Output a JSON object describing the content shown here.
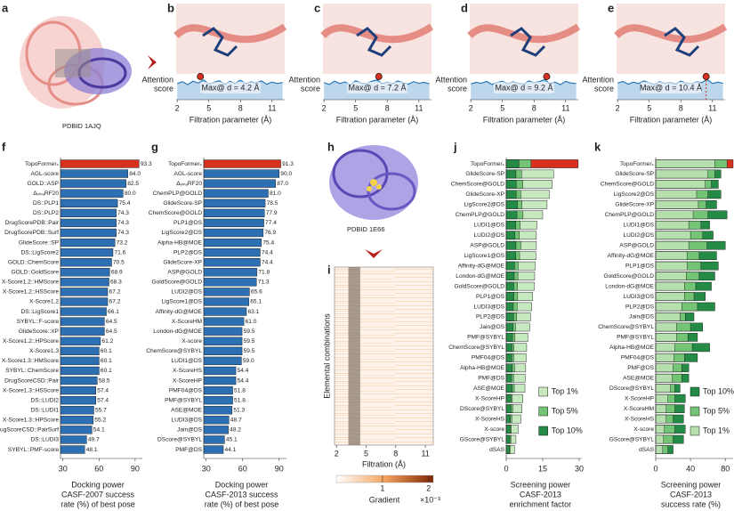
{
  "chart_data": [
    {
      "type": "image",
      "panel": "a",
      "caption": "PDBID 1AJQ"
    },
    {
      "type": "line",
      "panel": "b",
      "ylabel": [
        "Attention",
        "score"
      ],
      "xlabel": "Filtration parameter (Å)",
      "annotation": "Max@ d = 4.2 Å",
      "highlight_x": 4.2,
      "x": [
        2,
        2.5,
        3,
        3.5,
        4,
        4.5,
        5,
        5.5,
        6,
        6.5,
        7,
        7.5,
        8,
        8.5,
        9,
        9.5,
        10,
        10.5,
        11,
        11.5,
        12
      ],
      "values": [
        0.7,
        0.78,
        0.65,
        0.8,
        0.72,
        0.85,
        0.68,
        0.75,
        0.82,
        0.66,
        0.79,
        0.71,
        0.84,
        0.69,
        0.77,
        0.73,
        0.81,
        0.67,
        0.76,
        0.7,
        0.74
      ],
      "color": "#2a78b8",
      "fill": "#bcd6ec",
      "highlight_color": "#d7301f",
      "xlim": [
        1.9,
        12.2
      ],
      "ylim": [
        0,
        1
      ],
      "xticks": [
        2,
        5,
        8,
        11
      ]
    },
    {
      "type": "line",
      "panel": "c",
      "ylabel": [
        "Attention",
        "score"
      ],
      "xlabel": "Filtration parameter (Å)",
      "annotation": "Max@ d = 7.2 Å",
      "highlight_x": 7.2,
      "x": [
        2,
        2.5,
        3,
        3.5,
        4,
        4.5,
        5,
        5.5,
        6,
        6.5,
        7,
        7.5,
        8,
        8.5,
        9,
        9.5,
        10,
        10.5,
        11,
        11.5,
        12
      ],
      "values": [
        0.74,
        0.66,
        0.8,
        0.7,
        0.77,
        0.64,
        0.82,
        0.72,
        0.69,
        0.79,
        0.86,
        0.7,
        0.76,
        0.68,
        0.81,
        0.73,
        0.67,
        0.78,
        0.71,
        0.75,
        0.69
      ],
      "color": "#2a78b8",
      "fill": "#bcd6ec",
      "highlight_color": "#d7301f",
      "xlim": [
        1.9,
        12.2
      ],
      "ylim": [
        0,
        1
      ],
      "xticks": [
        2,
        5,
        8,
        11
      ]
    },
    {
      "type": "line",
      "panel": "d",
      "ylabel": [
        "Attention",
        "score"
      ],
      "xlabel": "Filtration parameter (Å)",
      "annotation": "Max@ d = 9.2 Å",
      "highlight_x": 9.2,
      "x": [
        2,
        2.5,
        3,
        3.5,
        4,
        4.5,
        5,
        5.5,
        6,
        6.5,
        7,
        7.5,
        8,
        8.5,
        9,
        9.5,
        10,
        10.5,
        11,
        11.5,
        12
      ],
      "values": [
        0.68,
        0.75,
        0.71,
        0.79,
        0.66,
        0.74,
        0.8,
        0.69,
        0.77,
        0.72,
        0.67,
        0.81,
        0.73,
        0.78,
        0.87,
        0.7,
        0.76,
        0.65,
        0.79,
        0.72,
        0.7
      ],
      "color": "#2a78b8",
      "fill": "#bcd6ec",
      "highlight_color": "#d7301f",
      "xlim": [
        1.9,
        12.2
      ],
      "ylim": [
        0,
        1
      ],
      "xticks": [
        2,
        5,
        8,
        11
      ]
    },
    {
      "type": "line",
      "panel": "e",
      "ylabel": [
        "Attention",
        "score"
      ],
      "xlabel": "Filtration parameter (Å)",
      "annotation": "Max@ d = 10.4 Å",
      "highlight_x": 10.4,
      "highlight_line": true,
      "x": [
        2,
        2.5,
        3,
        3.5,
        4,
        4.5,
        5,
        5.5,
        6,
        6.5,
        7,
        7.5,
        8,
        8.5,
        9,
        9.5,
        10,
        10.5,
        11,
        11.5,
        12
      ],
      "values": [
        0.72,
        0.79,
        0.67,
        0.76,
        0.7,
        0.81,
        0.73,
        0.66,
        0.78,
        0.71,
        0.75,
        0.68,
        0.8,
        0.72,
        0.69,
        0.77,
        0.74,
        0.88,
        0.7,
        0.76,
        0.71
      ],
      "color": "#2a78b8",
      "fill": "#bcd6ec",
      "highlight_color": "#d7301f",
      "xlim": [
        1.9,
        12.2
      ],
      "ylim": [
        0,
        1
      ],
      "xticks": [
        2,
        5,
        8,
        11
      ]
    },
    {
      "type": "hbar",
      "panel": "f",
      "xlabel": [
        "Docking power",
        "CASF-2007 success",
        "rate (%) of best pose"
      ],
      "categories": [
        "TopoFormerₛ",
        "AGL-score",
        "GOLD::ASP",
        "ΔᵥᵢₙₐRF20",
        "DS::PLP1",
        "DS::PLP2",
        "DrugScorePDB::Pair",
        "DrugScorePDB::Surf",
        "GlideScore::SP",
        "DS::LigScore2",
        "GOLD::ChemScore",
        "GOLD::GoldScore",
        "X-Score1.2::HMScore",
        "X-Score1.2::HSScore",
        "X-Score1.2",
        "DS::LigScore1",
        "SYBYL::F-score",
        "GlideScore::XP",
        "X-Score1.2::HPScore",
        "X-Score1.3",
        "X-Score1.3::HMScore",
        "SYBYL::ChemScore",
        "DrugScoreCSD::Pair",
        "X-Score1.3::HSScore",
        "DS::LUDI2",
        "DS::LUDI1",
        "X-Score1.3::HPScore",
        "DrugScoreCSD::PairSurf",
        "DS::LUDI3",
        "SYBYL::PMF-score"
      ],
      "values": [
        93.3,
        84,
        82.5,
        80,
        75.4,
        74.3,
        74.3,
        74.3,
        73.2,
        71.6,
        70.5,
        68.9,
        68.3,
        67.2,
        67.2,
        66.1,
        64.5,
        64.5,
        61.2,
        60.1,
        60.1,
        60.1,
        58.5,
        57.4,
        57.4,
        55.7,
        55.2,
        54.1,
        49.7,
        48.1
      ],
      "value_labels": [
        "93.3",
        "84.0",
        "82.5",
        "80.0",
        "75.4",
        "74.3",
        "74.3",
        "74.3",
        "73.2",
        "71.6",
        "70.5",
        "68.9",
        "68.3",
        "67.2",
        "67.2",
        "66.1",
        "64.5",
        "64.5",
        "61.2",
        "60.1",
        "60.1",
        "60.1",
        "58.5",
        "57.4",
        "57.4",
        "55.7",
        "55.2",
        "54.1",
        "49.7",
        "48.1"
      ],
      "color": "#2c6fb3",
      "highlight_color": "#d7301f",
      "xlim": [
        28,
        96
      ],
      "xticks": [
        30,
        60,
        90
      ]
    },
    {
      "type": "hbar",
      "panel": "g",
      "xlabel": [
        "Docking power",
        "CASF-2013 success",
        "rate (%) of best pose"
      ],
      "categories": [
        "TopoFormerₛ",
        "AGL-score",
        "ΔᵥᵢₙₐRF20",
        "ChemPLP@GOLD",
        "GlideScore-SP",
        "ChemScore@GOLD",
        "PLP1@DS",
        "LigScore2@DS",
        "Alpha-HB@MOE",
        "PLP2@DS",
        "GlideScore-XP",
        "ASP@GOLD",
        "GoldScore@GOLD",
        "LUDI2@DS",
        "LigScore1@DS",
        "Affinity-dG@MOE",
        "X-ScoreHM",
        "London-dG@MOE",
        "X-score",
        "ChemScore@SYBYL",
        "LUDI1@DS",
        "X-ScoreHS",
        "X-ScoreHP",
        "PMF04@DS",
        "PMF@SYBYL",
        "ASE@MOE",
        "LUDI3@DS",
        "Jain@DS",
        "DScore@SYBYL",
        "PMF@DS"
      ],
      "values": [
        91.3,
        90,
        87,
        81,
        78.5,
        77.9,
        77.4,
        76.9,
        75.4,
        74.4,
        74.4,
        71.8,
        71.3,
        65.6,
        65.1,
        63.1,
        61,
        59.5,
        59.5,
        59.5,
        59,
        54.4,
        54.4,
        51.8,
        51.8,
        51.3,
        48.7,
        48.2,
        45.1,
        44.1
      ],
      "value_labels": [
        "91.3",
        "90.0",
        "87.0",
        "81.0",
        "78.5",
        "77.9",
        "77.4",
        "76.9",
        "75.4",
        "74.4",
        "74.4",
        "71.8",
        "71.3",
        "65.6",
        "65.1",
        "63.1",
        "61.0",
        "59.5",
        "59.5",
        "59.5",
        "59.0",
        "54.4",
        "54.4",
        "51.8",
        "51.8",
        "51.3",
        "48.7",
        "48.2",
        "45.1",
        "44.1"
      ],
      "color": "#2c6fb3",
      "highlight_color": "#d7301f",
      "xlim": [
        28,
        96
      ],
      "xticks": [
        30,
        60,
        90
      ]
    },
    {
      "type": "image",
      "panel": "h",
      "caption": "PDBID 1E66"
    },
    {
      "type": "heatmap",
      "panel": "i",
      "ylabel": "Elemental combinations",
      "xlabel": "Filtration (Å)",
      "xlim": [
        1.8,
        11.8
      ],
      "xticks": [
        2,
        5,
        8,
        11
      ],
      "highlight_band": [
        3.2,
        4.4
      ],
      "colorbar_label": "Gradient",
      "colorbar_unit": "×10⁻³",
      "clim": [
        0,
        2.1
      ],
      "cticks": [
        1,
        2
      ],
      "colors": [
        "#ffffff",
        "#f4a460",
        "#7f2704"
      ]
    },
    {
      "type": "overlay_hbar",
      "panel": "j",
      "xlabel": [
        "Screening power",
        "CASF-2013",
        "enrichment factor"
      ],
      "categories": [
        "TopoFormerₛ",
        "GlideScore-SP",
        "ChemScore@GOLD",
        "GlideScore-XP",
        "LigScore2@DS",
        "ChemPLP@GOLD",
        "LUDI1@DS",
        "LUDI2@DS",
        "ASP@GOLD",
        "LigScore1@DS",
        "Affinity-dG@MOE",
        "London-dG@MOE",
        "GoldScore@GOLD",
        "PLP1@DS",
        "LUDI3@DS",
        "PLP2@DS",
        "Jain@DS",
        "PMF@SYBYL",
        "ChemScore@SYBYL",
        "PMF04@DS",
        "Alpha-HB@MOE",
        "PMF@DS",
        "ASE@MOE",
        "X-ScoreHP",
        "DScore@SYBYL",
        "X-ScoreHS",
        "X-score",
        "GScore@SYBYL",
        "dSAS"
      ],
      "series": [
        {
          "name": "Top 1%",
          "color": "#c7e9c0",
          "values": [
            29.6,
            19.5,
            18.9,
            17.7,
            16.8,
            15,
            12.6,
            12.4,
            12.4,
            12.2,
            11.9,
            11.7,
            11.5,
            10.9,
            10.5,
            10,
            9.6,
            8.9,
            8.4,
            8.2,
            8,
            7.8,
            7.7,
            6.8,
            6.5,
            6,
            4.9,
            4,
            3.4
          ]
        },
        {
          "name": "Top 5%",
          "color": "#74c476",
          "values": [
            10.2,
            6.3,
            6.8,
            6,
            6.5,
            6.9,
            5.7,
            5.4,
            6,
            5.5,
            4.9,
            4.8,
            4.6,
            4.7,
            4.5,
            4.3,
            3.8,
            3.6,
            3.2,
            3.1,
            3.4,
            3,
            3.3,
            2.5,
            2.7,
            2.3,
            2.1,
            1.9,
            1.6
          ]
        },
        {
          "name": "Top 10%",
          "color": "#238b45",
          "values": [
            5.2,
            4,
            4.1,
            4.1,
            4.6,
            4.4,
            3.9,
            3.6,
            4,
            3.9,
            3.4,
            3.3,
            3.1,
            3.2,
            2.9,
            3,
            2.8,
            2.6,
            2.4,
            2.3,
            2.5,
            2.2,
            2.5,
            1.9,
            2,
            1.7,
            1.6,
            1.5,
            1.3
          ]
        }
      ],
      "highlight_color": "#d7301f",
      "xlim": [
        0,
        31
      ],
      "xticks": [
        0,
        15,
        30
      ],
      "legend": "lower right"
    },
    {
      "type": "overlay_hbar",
      "panel": "k",
      "xlabel": [
        "Screening power",
        "CASF-2013",
        "success rate (%)"
      ],
      "categories": [
        "TopoFormerₛ",
        "GlideScore-SP",
        "ChemScore@GOLD",
        "LigScore2@DS",
        "GlideScore-XP",
        "ChemPLP@GOLD",
        "LUDI1@DS",
        "LUDI2@DS",
        "ASP@GOLD",
        "Affinity-dG@MOE",
        "PLP1@DS",
        "GoldScore@GOLD",
        "London-dG@MOE",
        "LUDI3@DS",
        "PLP2@DS",
        "Jain@DS",
        "ChemScore@SYBYL",
        "PMF@SYBYL",
        "Alpha-HB@MOE",
        "PMF04@DS",
        "PMF@DS",
        "ASE@MOE",
        "DScore@SYBYL",
        "X-ScoreHP",
        "X-ScoreHM",
        "X-ScoreHS",
        "X-score",
        "GScore@SYBYL",
        "dSAS"
      ],
      "series": [
        {
          "name": "Top 10%",
          "color": "#238b45",
          "values": [
            89,
            75,
            72,
            75,
            70,
            82,
            62,
            66,
            80,
            70,
            72,
            68,
            64,
            57,
            68,
            44,
            54,
            48,
            62,
            48,
            38,
            38,
            28,
            34,
            33,
            32,
            34,
            32,
            20
          ]
        },
        {
          "name": "Top 5%",
          "color": "#74c476",
          "values": [
            82,
            68,
            64,
            60,
            58,
            60,
            52,
            54,
            59,
            50,
            52,
            50,
            46,
            44,
            48,
            34,
            40,
            37,
            42,
            33,
            30,
            30,
            22,
            22,
            22,
            20,
            22,
            20,
            14
          ]
        },
        {
          "name": "Top 1%",
          "color": "#b5e0ad",
          "values": [
            68,
            60,
            57,
            47,
            49,
            43,
            38,
            40,
            38,
            36,
            36,
            35,
            33,
            33,
            30,
            28,
            24,
            24,
            22,
            21,
            20,
            19,
            17,
            14,
            12,
            12,
            10,
            9,
            8
          ]
        }
      ],
      "highlight_color": "#d7301f",
      "xlim": [
        0,
        89
      ],
      "xticks": [
        0,
        40,
        80
      ],
      "legend": "lower right"
    }
  ]
}
